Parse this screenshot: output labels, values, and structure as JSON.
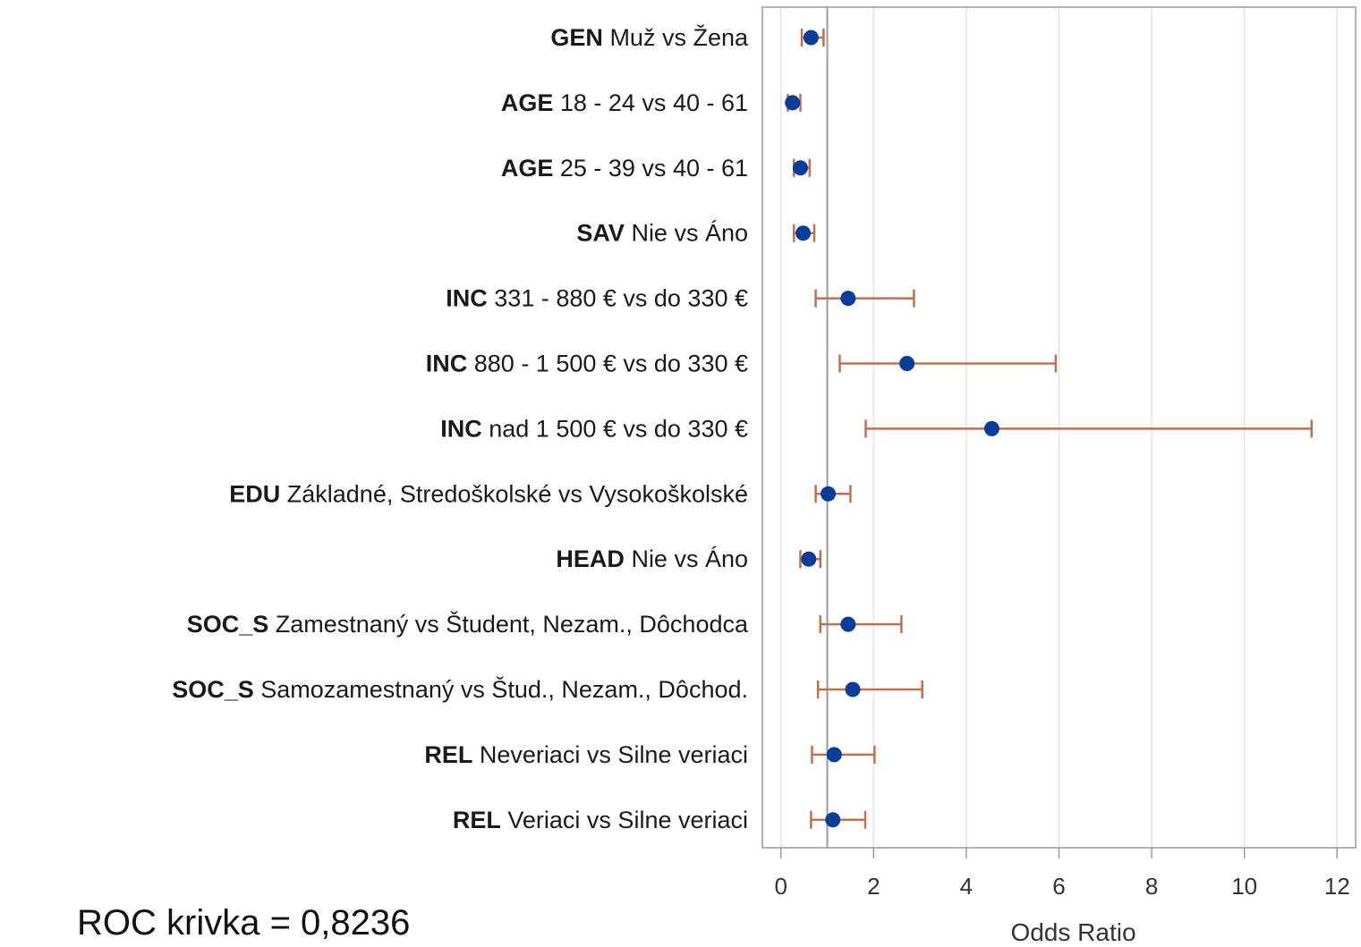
{
  "chart_data": {
    "type": "scatter",
    "subtype": "forest-plot",
    "xlabel": "Odds Ratio",
    "xlim": [
      -0.4,
      12.4
    ],
    "xticks": [
      0,
      2,
      4,
      6,
      8,
      10,
      12
    ],
    "reference_line": 1,
    "grid": "vertical",
    "colors": {
      "point": "#0a3d9a",
      "ci": "#c0704a",
      "reference": "#9a9a9a",
      "grid": "#e2e2e2",
      "frame": "#9a9a9a"
    },
    "rows": [
      {
        "var": "GEN",
        "label": "Muž vs Žena",
        "or": 0.65,
        "lo": 0.45,
        "hi": 0.92
      },
      {
        "var": "AGE",
        "label": "18 - 24 vs 40 - 61",
        "or": 0.25,
        "lo": 0.15,
        "hi": 0.42
      },
      {
        "var": "AGE",
        "label": "25 - 39 vs 40 - 61",
        "or": 0.42,
        "lo": 0.28,
        "hi": 0.62
      },
      {
        "var": "SAV",
        "label": "Nie vs Áno",
        "or": 0.48,
        "lo": 0.28,
        "hi": 0.72
      },
      {
        "var": "INC",
        "label": "331 - 880 € vs do 330 €",
        "or": 1.45,
        "lo": 0.75,
        "hi": 2.87
      },
      {
        "var": "INC",
        "label": "880 - 1 500 € vs do 330 €",
        "or": 2.72,
        "lo": 1.27,
        "hi": 5.93
      },
      {
        "var": "INC",
        "label": "nad 1 500 € vs do 330 €",
        "or": 4.55,
        "lo": 1.83,
        "hi": 11.45
      },
      {
        "var": "EDU",
        "label": "Základné, Stredoškolské vs Vysokoškolské",
        "or": 1.02,
        "lo": 0.75,
        "hi": 1.5
      },
      {
        "var": "HEAD",
        "label": "Nie vs Áno",
        "or": 0.6,
        "lo": 0.42,
        "hi": 0.85
      },
      {
        "var": "SOC_S",
        "label": "Zamestnaný vs Študent, Nezam., Dôchodca",
        "or": 1.45,
        "lo": 0.85,
        "hi": 2.6
      },
      {
        "var": "SOC_S",
        "label": "Samozamestnaný vs Štud., Nezam., Dôchod.",
        "or": 1.55,
        "lo": 0.8,
        "hi": 3.05
      },
      {
        "var": "REL",
        "label": "Neveriaci vs Silne veriaci",
        "or": 1.15,
        "lo": 0.67,
        "hi": 2.02
      },
      {
        "var": "REL",
        "label": "Veriaci vs Silne veriaci",
        "or": 1.12,
        "lo": 0.65,
        "hi": 1.82
      }
    ]
  },
  "roc_text": "ROC krivka = 0,8236"
}
